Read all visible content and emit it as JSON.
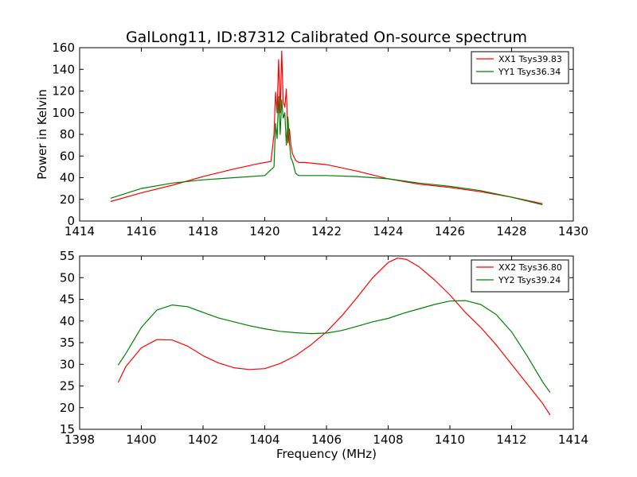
{
  "chart_data": [
    {
      "type": "line",
      "title": "GalLong11, ID:87312 Calibrated On-source spectrum",
      "xlabel": "",
      "ylabel": "Power in Kelvin",
      "xlim": [
        1414,
        1430
      ],
      "ylim": [
        0,
        160
      ],
      "xticks": [
        "1414",
        "1416",
        "1418",
        "1420",
        "1422",
        "1424",
        "1426",
        "1428",
        "1430"
      ],
      "yticks": [
        "0",
        "20",
        "40",
        "60",
        "80",
        "100",
        "120",
        "140",
        "160"
      ],
      "legend_position": "top-right",
      "series": [
        {
          "name": "XX1 Tsys39.83",
          "color": "#ff0000",
          "x": [
            1415.0,
            1416.0,
            1417.0,
            1418.0,
            1419.0,
            1419.8,
            1420.2,
            1420.3,
            1420.35,
            1420.4,
            1420.45,
            1420.5,
            1420.55,
            1420.6,
            1420.65,
            1420.7,
            1420.75,
            1420.8,
            1420.85,
            1420.9,
            1421.0,
            1421.1,
            1421.3,
            1422.0,
            1423.0,
            1424.0,
            1425.0,
            1426.0,
            1427.0,
            1428.0,
            1429.0
          ],
          "y": [
            18,
            26,
            33,
            41,
            48,
            53,
            55,
            80,
            119,
            100,
            149,
            100,
            157,
            110,
            105,
            122,
            72,
            85,
            70,
            62,
            56,
            54,
            54,
            52,
            46,
            39,
            34,
            31,
            27,
            22,
            16
          ]
        },
        {
          "name": "YY1 Tsys36.34",
          "color": "#008000",
          "x": [
            1415.0,
            1416.0,
            1417.0,
            1418.0,
            1419.0,
            1420.0,
            1420.3,
            1420.35,
            1420.4,
            1420.45,
            1420.5,
            1420.55,
            1420.6,
            1420.65,
            1420.7,
            1420.75,
            1420.8,
            1420.85,
            1420.9,
            1421.0,
            1421.1,
            1422.0,
            1423.0,
            1424.0,
            1425.0,
            1426.0,
            1427.0,
            1428.0,
            1429.0
          ],
          "y": [
            21,
            30,
            35,
            38,
            40,
            42,
            50,
            90,
            76,
            115,
            80,
            112,
            95,
            100,
            70,
            96,
            72,
            58,
            55,
            44,
            42,
            42,
            41,
            39,
            35,
            32,
            28,
            22,
            15
          ]
        }
      ]
    },
    {
      "type": "line",
      "title": "",
      "xlabel": "Frequency (MHz)",
      "ylabel": "",
      "xlim": [
        1398,
        1414
      ],
      "ylim": [
        15,
        55
      ],
      "xticks": [
        "1398",
        "1400",
        "1402",
        "1404",
        "1406",
        "1408",
        "1410",
        "1412",
        "1414"
      ],
      "yticks": [
        "15",
        "20",
        "25",
        "30",
        "35",
        "40",
        "45",
        "50",
        "55"
      ],
      "legend_position": "top-right",
      "series": [
        {
          "name": "XX2 Tsys36.80",
          "color": "#ff0000",
          "x": [
            1399.25,
            1399.5,
            1400.0,
            1400.5,
            1401.0,
            1401.5,
            1402.0,
            1402.5,
            1403.0,
            1403.5,
            1404.0,
            1404.5,
            1405.0,
            1405.5,
            1406.0,
            1406.5,
            1407.0,
            1407.5,
            1408.0,
            1408.3,
            1408.6,
            1409.0,
            1409.5,
            1410.0,
            1410.5,
            1411.0,
            1411.5,
            1412.0,
            1412.5,
            1413.0,
            1413.25
          ],
          "y": [
            25.8,
            29.5,
            33.8,
            35.7,
            35.6,
            34.2,
            32.0,
            30.3,
            29.2,
            28.8,
            29.0,
            30.2,
            32.0,
            34.5,
            37.5,
            41.2,
            45.5,
            50.0,
            53.5,
            54.5,
            54.2,
            52.5,
            49.5,
            46.0,
            42.0,
            38.5,
            34.5,
            30.0,
            25.5,
            21.0,
            18.3
          ]
        },
        {
          "name": "YY2 Tsys39.24",
          "color": "#008000",
          "x": [
            1399.25,
            1399.5,
            1400.0,
            1400.5,
            1401.0,
            1401.5,
            1402.0,
            1402.5,
            1403.0,
            1403.5,
            1404.0,
            1404.5,
            1405.0,
            1405.5,
            1406.0,
            1406.5,
            1407.0,
            1407.5,
            1408.0,
            1408.5,
            1409.0,
            1409.5,
            1410.0,
            1410.5,
            1411.0,
            1411.5,
            1412.0,
            1412.5,
            1413.0,
            1413.25
          ],
          "y": [
            29.8,
            32.5,
            38.5,
            42.5,
            43.7,
            43.3,
            42.0,
            40.7,
            39.8,
            38.9,
            38.2,
            37.6,
            37.3,
            37.1,
            37.2,
            37.8,
            38.8,
            39.8,
            40.6,
            41.8,
            42.8,
            43.8,
            44.6,
            44.7,
            43.8,
            41.5,
            37.5,
            32.0,
            26.0,
            23.5
          ]
        }
      ]
    }
  ]
}
